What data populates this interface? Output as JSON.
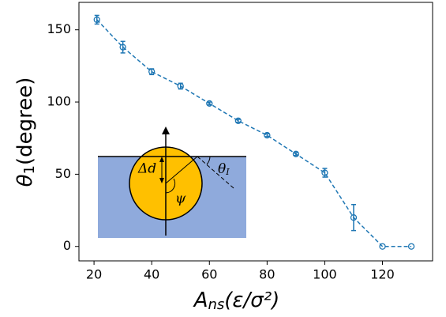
{
  "chart_data": {
    "type": "line",
    "xlabel": [
      "A",
      "ns",
      "(ε/σ²)"
    ],
    "ylabel": [
      "θ",
      "1",
      "(degree)"
    ],
    "x": [
      21,
      30,
      40,
      50,
      60,
      70,
      80,
      90,
      100,
      110,
      120,
      130
    ],
    "series": [
      {
        "color": "#1f77b4",
        "values": [
          157,
          138,
          121,
          111,
          99,
          87,
          77,
          64,
          51,
          20,
          0,
          0
        ],
        "errors": [
          3,
          4,
          2,
          2,
          1,
          1,
          1,
          1,
          3,
          9,
          0,
          0
        ]
      }
    ],
    "xlim": [
      14.5,
      136
    ],
    "ylim": [
      -10,
      169
    ],
    "xticks": [
      20,
      40,
      60,
      80,
      100,
      120
    ],
    "yticks": [
      0,
      50,
      100,
      150
    ],
    "inset_labels": {
      "depth": "Δd",
      "angle": "θ",
      "angle_sub": "I",
      "psi": "ψ"
    }
  }
}
